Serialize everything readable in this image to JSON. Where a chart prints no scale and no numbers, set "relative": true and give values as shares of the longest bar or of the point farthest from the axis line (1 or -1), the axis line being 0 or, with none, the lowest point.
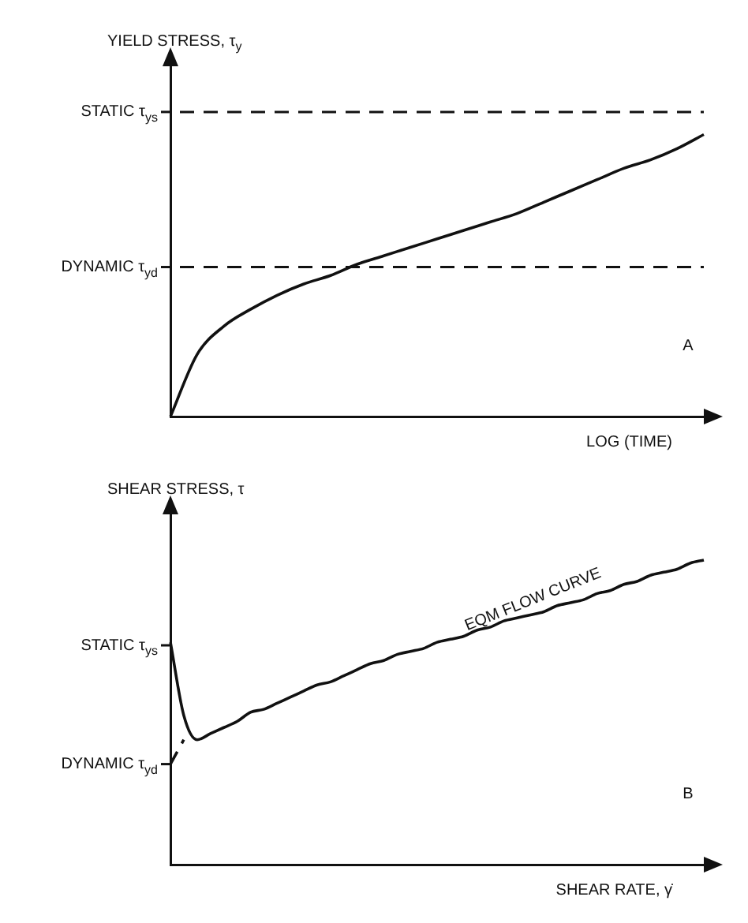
{
  "chart_data": [
    {
      "type": "line",
      "relative": true,
      "ylabel": "YIELD STRESS, τ$_{y}$",
      "xlabel": "LOG (TIME)",
      "categories": [
        null,
        null,
        null,
        null,
        null,
        null,
        null,
        null,
        null,
        null,
        null,
        null,
        null,
        null,
        null,
        null,
        null,
        null,
        null,
        null,
        null
      ],
      "series": [
        {
          "color": "#111111",
          "values": [
            0,
            0.22,
            0.32,
            0.38,
            0.43,
            0.47,
            0.5,
            0.54,
            0.57,
            0.6,
            0.63,
            0.66,
            0.69,
            0.72,
            0.76,
            0.8,
            0.84,
            0.88,
            0.91,
            0.95,
            1
          ]
        }
      ],
      "ref_lines": [
        {
          "axis": "y",
          "value": 1.08,
          "label": "STATIC τ$_{ys}$",
          "color": "#111111",
          "line_style": "dashed"
        },
        {
          "axis": "y",
          "value": 0.53,
          "label": "DYNAMIC τ$_{yd}$",
          "color": "#111111",
          "line_style": "dashed"
        }
      ],
      "annotations": [
        "A"
      ],
      "grid": false,
      "legend": false,
      "marker": "none",
      "line_style": "solid"
    },
    {
      "type": "line",
      "relative": true,
      "ylabel": "SHEAR STRESS, τ",
      "xlabel": "SHEAR RATE, γ̇",
      "categories": [
        null,
        null,
        null,
        null,
        null,
        null,
        null,
        null,
        null,
        null,
        null,
        null,
        null,
        null,
        null,
        null,
        null,
        null,
        null,
        null,
        null,
        null,
        null,
        null,
        null,
        null,
        null,
        null,
        null,
        null,
        null,
        null,
        null,
        null,
        null,
        null,
        null,
        null,
        null,
        null,
        null
      ],
      "series": [
        {
          "color": "#111111",
          "values": [
            0.73,
            0.49,
            0.41,
            0.43,
            0.45,
            0.47,
            0.5,
            0.51,
            0.53,
            0.55,
            0.57,
            0.59,
            0.6,
            0.62,
            0.64,
            0.66,
            0.67,
            0.69,
            0.7,
            0.71,
            0.73,
            0.74,
            0.75,
            0.77,
            0.78,
            0.8,
            0.81,
            0.82,
            0.83,
            0.85,
            0.86,
            0.87,
            0.89,
            0.9,
            0.92,
            0.93,
            0.95,
            0.96,
            0.97,
            0.99,
            1
          ]
        },
        {
          "color": "#111111",
          "line_style": "dashed",
          "values": [
            0.33,
            0.41,
            null,
            null,
            null,
            null,
            null,
            null,
            null,
            null,
            null,
            null,
            null,
            null,
            null,
            null,
            null,
            null,
            null,
            null,
            null,
            null,
            null,
            null,
            null,
            null,
            null,
            null,
            null,
            null,
            null,
            null,
            null,
            null,
            null,
            null,
            null,
            null,
            null,
            null,
            null
          ]
        }
      ],
      "ref_lines": [
        {
          "axis": "y",
          "value": 0.72,
          "label": "STATIC τ$_{ys}$",
          "line_style": "solid"
        },
        {
          "axis": "y",
          "value": 0.33,
          "label": "DYNAMIC τ$_{yd}$",
          "line_style": "solid"
        }
      ],
      "annotations": [
        "EQM FLOW CURVE",
        "B"
      ],
      "grid": false,
      "legend": false,
      "marker": "none",
      "line_style": "solid"
    }
  ]
}
